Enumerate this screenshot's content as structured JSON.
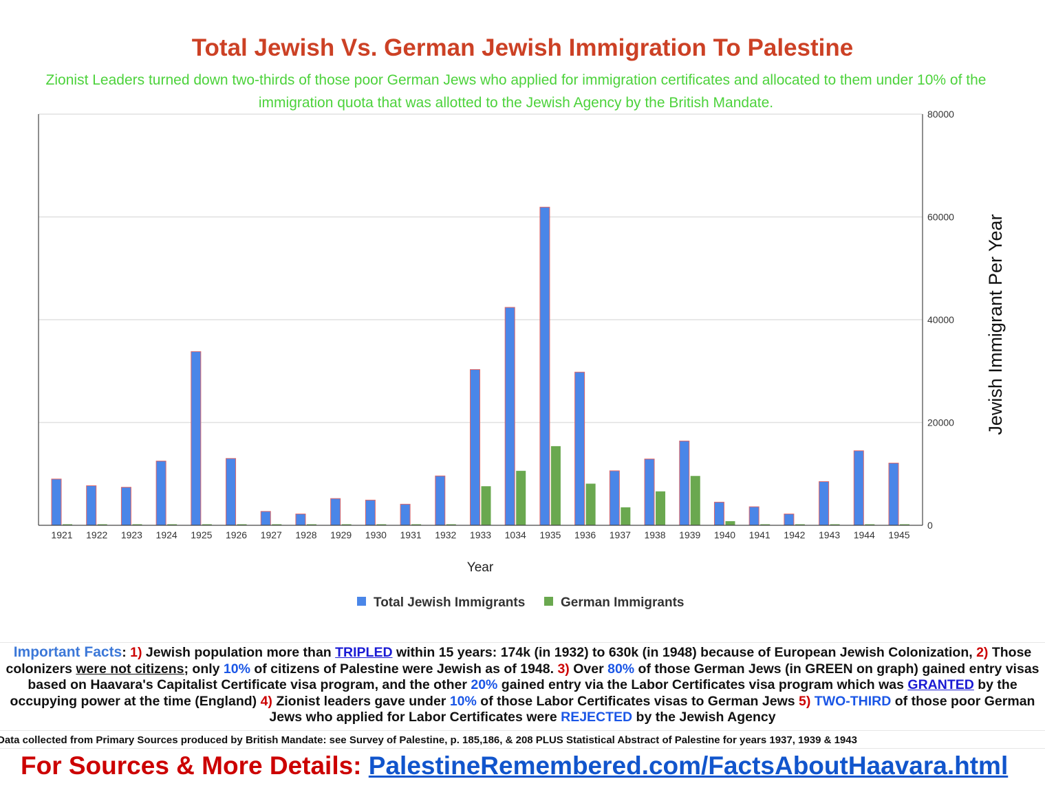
{
  "chart_data": {
    "type": "bar",
    "title": "Total Jewish Vs. German Jewish Immigration To Palestine",
    "subtitle": "Zionist Leaders turned down two-thirds of those poor German Jews who applied for immigration certificates and allocated to them under 10% of the immigration quota that was allotted to the Jewish Agency by the British Mandate.",
    "xlabel": "Year",
    "ylabel": "Jewish Immigrant Per Year",
    "ylim": [
      0,
      80000
    ],
    "yticks": [
      "0",
      "20000",
      "40000",
      "60000",
      "80000"
    ],
    "y_axis_side": "right",
    "grid": true,
    "legend_position": "bottom",
    "categories": [
      "1921",
      "1922",
      "1923",
      "1924",
      "1925",
      "1926",
      "1927",
      "1928",
      "1929",
      "1930",
      "1931",
      "1932",
      "1933",
      "1034",
      "1935",
      "1936",
      "1937",
      "1938",
      "1939",
      "1940",
      "1941",
      "1942",
      "1943",
      "1944",
      "1945"
    ],
    "series": [
      {
        "name": "Total Jewish Immigrants",
        "color": "#4a86e8",
        "values": [
          9000,
          7700,
          7400,
          12500,
          33800,
          13000,
          2700,
          2200,
          5200,
          4900,
          4100,
          9600,
          30300,
          42400,
          61900,
          29800,
          10600,
          12900,
          16400,
          4500,
          3600,
          2200,
          8500,
          14500,
          12100
        ]
      },
      {
        "name": "German Immigrants",
        "color": "#6aa84f",
        "values": [
          0,
          0,
          0,
          0,
          0,
          0,
          0,
          0,
          0,
          0,
          0,
          0,
          7600,
          10600,
          15400,
          8100,
          3500,
          6600,
          9600,
          800,
          0,
          0,
          0,
          0,
          0
        ]
      }
    ]
  },
  "facts": {
    "lead": "Important Facts",
    "colon": ": ",
    "n1": "1)",
    "t1a": " Jewish population more than ",
    "tripled": "TRIPLED",
    "t1b": " within 15 years: 174k (in 1932) to 630k (in 1948) because of European Jewish Colonization, ",
    "n2": "2)",
    "t2a": " Those colonizers ",
    "not_citizens": "were not citizens;",
    "t2b": " only ",
    "p10a": "10%",
    "t2c": " of citizens of Palestine were Jewish as of 1948. ",
    "n3": "3)",
    "t3a": " Over ",
    "p80": "80%",
    "t3b": " of those German Jews (in GREEN on graph) gained entry visas based on Haavara's Capitalist Certificate visa program, and the other ",
    "p20": "20%",
    "t3c": " gained entry via the Labor Certificates visa program which was ",
    "granted": "GRANTED",
    "t3d": " by the occupying power at the time (England) ",
    "n4": "4)",
    "t4a": " Zionist leaders gave under ",
    "p10b": "10%",
    "t4b": " of those Labor Certificates visas to German Jews ",
    "n5": "5)",
    "t5a": " ",
    "two_third": "TWO-THIRD",
    "t5b": " of those poor German Jews who applied for Labor Certificates were ",
    "rejected": "REJECTED",
    "t5c": " by the Jewish Agency"
  },
  "source_note": "Data collected from Primary Sources  produced by British Mandate: see Survey of Palestine, p. 185,186, & 208 PLUS Statistical Abstract of Palestine for years 1937, 1939 & 1943",
  "footer": {
    "label": "For Sources & More Details: ",
    "link": "PalestineRemembered.com/FactsAboutHaavara.html"
  }
}
